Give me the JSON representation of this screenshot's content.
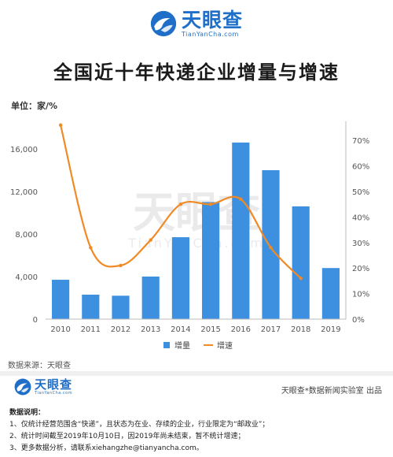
{
  "brand": {
    "name": "天眼查",
    "name_en": "TianYanCha.com",
    "accent_color": "#1f6fc8"
  },
  "page": {
    "title": "全国近十年快递企业增量与增速",
    "unit": "单位：家/%",
    "source": "数据来源：天眼查",
    "credit": "天眼查*数据新闻实验室 出品",
    "notes_title": "数据说明：",
    "notes": [
      "1、仅统计经营范围含“快递”，且状态为在业、存续的企业，行业限定为“邮政业”；",
      "2、统计时间截至2019年10月10日，因2019年尚未结束，暂不统计增速；",
      "3、更多数据分析，请联系xiehangzhe@tianyancha.com。"
    ],
    "watermark_cn": "天眼查",
    "watermark_en": "TianYanCha.com"
  },
  "chart_data": {
    "type": "bar",
    "categories": [
      "2010",
      "2011",
      "2012",
      "2013",
      "2014",
      "2015",
      "2016",
      "2017",
      "2018",
      "2019"
    ],
    "series": [
      {
        "name": "增量",
        "type": "bar",
        "axis": "left",
        "color": "#3d8fe0",
        "values": [
          3700,
          2300,
          2200,
          4000,
          7700,
          11000,
          16600,
          14000,
          10600,
          4800
        ]
      },
      {
        "name": "增速",
        "type": "line",
        "axis": "right",
        "color": "#f08a24",
        "values": [
          76,
          28,
          21,
          31,
          45,
          45,
          47,
          28,
          16,
          null
        ]
      }
    ],
    "y_left": {
      "min": 0,
      "max": 18000,
      "ticks": [
        0,
        4000,
        8000,
        12000,
        16000
      ],
      "tick_labels": [
        "0",
        "4,000",
        "8,000",
        "12,000",
        "16,000"
      ]
    },
    "y_right": {
      "min": 0,
      "max": 75,
      "ticks": [
        0,
        10,
        20,
        30,
        40,
        50,
        60,
        70
      ],
      "tick_labels": [
        "0%",
        "10%",
        "20%",
        "30%",
        "40%",
        "50%",
        "60%",
        "70%"
      ]
    },
    "grid": false,
    "legend_position": "bottom-center"
  }
}
